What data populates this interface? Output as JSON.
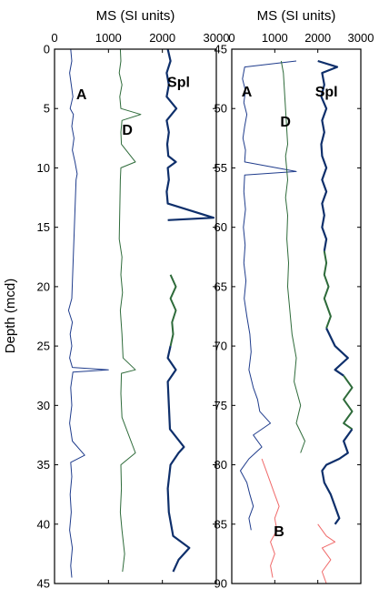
{
  "chart_data": {
    "type": "line",
    "ylabel": "Depth (mcd)",
    "panels": [
      {
        "xlabel": "MS (SI units)",
        "xlim": [
          0,
          3000
        ],
        "xticks": [
          0,
          1000,
          2000,
          3000
        ],
        "ylim": [
          0,
          45
        ],
        "yticks": [
          0,
          5,
          10,
          15,
          20,
          25,
          30,
          35,
          40,
          45
        ],
        "series": [
          {
            "name": "A",
            "color": "#1f3c8c",
            "label_at": [
              500,
              4.2
            ],
            "points": [
              [
                300,
                0
              ],
              [
                320,
                1
              ],
              [
                280,
                2
              ],
              [
                310,
                3
              ],
              [
                340,
                4
              ],
              [
                290,
                5
              ],
              [
                350,
                5.5
              ],
              [
                320,
                6.5
              ],
              [
                360,
                7.5
              ],
              [
                330,
                8.5
              ],
              [
                380,
                9.5
              ],
              [
                420,
                10.5
              ],
              [
                400,
                11
              ],
              [
                320,
                21
              ],
              [
                260,
                22
              ],
              [
                330,
                23
              ],
              [
                290,
                24
              ],
              [
                320,
                25
              ],
              [
                280,
                26
              ],
              [
                330,
                26.8
              ],
              [
                1000,
                27
              ],
              [
                340,
                27.2
              ],
              [
                300,
                28.5
              ],
              [
                320,
                30
              ],
              [
                280,
                31.5
              ],
              [
                330,
                33
              ],
              [
                560,
                34.2
              ],
              [
                300,
                34.8
              ],
              [
                320,
                36
              ],
              [
                290,
                37.5
              ],
              [
                310,
                39
              ],
              [
                280,
                40.5
              ],
              [
                330,
                42
              ],
              [
                300,
                43.5
              ],
              [
                320,
                44.5
              ]
            ]
          },
          {
            "name": "D",
            "color": "#2e6b3a",
            "label_at": [
              1350,
              7.2
            ],
            "points": [
              [
                1220,
                0
              ],
              [
                1230,
                1
              ],
              [
                1200,
                2
              ],
              [
                1250,
                3
              ],
              [
                1210,
                4
              ],
              [
                1230,
                5
              ],
              [
                1600,
                5.5
              ],
              [
                1250,
                6
              ],
              [
                1230,
                7
              ],
              [
                1240,
                8
              ],
              [
                1500,
                9.5
              ],
              [
                1230,
                10
              ],
              [
                1220,
                11
              ],
              [
                1200,
                16
              ],
              [
                1250,
                17.5
              ],
              [
                1230,
                19
              ],
              [
                1260,
                20.5
              ],
              [
                1220,
                22
              ],
              [
                1250,
                24
              ],
              [
                1270,
                26
              ],
              [
                1500,
                27
              ],
              [
                1240,
                27.3
              ],
              [
                1230,
                29
              ],
              [
                1250,
                31
              ],
              [
                1500,
                34
              ],
              [
                1230,
                35
              ],
              [
                1240,
                37
              ],
              [
                1220,
                39
              ],
              [
                1250,
                40.5
              ],
              [
                1300,
                42.5
              ],
              [
                1260,
                44
              ]
            ]
          },
          {
            "name": "Spl",
            "color": "#0e2f6b",
            "label_at": [
              2300,
              3.2
            ],
            "points": [
              [
                2100,
                0
              ],
              [
                2150,
                1
              ],
              [
                2080,
                2
              ],
              [
                2120,
                3
              ],
              [
                2080,
                4
              ],
              [
                2260,
                5
              ],
              [
                2080,
                6
              ],
              [
                2120,
                7
              ],
              [
                2090,
                8
              ],
              [
                2110,
                9
              ],
              [
                2250,
                9.5
              ],
              [
                2100,
                10
              ],
              [
                2120,
                11
              ],
              [
                2080,
                12
              ],
              [
                2100,
                13
              ],
              [
                2950,
                14.2
              ],
              [
                2100,
                14.4
              ]
            ]
          },
          {
            "name": "",
            "color": "#2e6b3a",
            "points": [
              [
                2150,
                19
              ],
              [
                2250,
                20
              ],
              [
                2150,
                21
              ],
              [
                2250,
                22
              ],
              [
                2180,
                23
              ],
              [
                2200,
                24
              ],
              [
                2150,
                25
              ]
            ]
          },
          {
            "name": "",
            "color": "#0e2f6b",
            "points": [
              [
                2150,
                25
              ],
              [
                2100,
                26
              ],
              [
                2250,
                27
              ],
              [
                2100,
                28
              ],
              [
                2120,
                30
              ],
              [
                2140,
                32
              ],
              [
                2400,
                33.5
              ],
              [
                2300,
                34
              ],
              [
                2150,
                35
              ],
              [
                2100,
                37
              ],
              [
                2120,
                39
              ],
              [
                2200,
                41
              ],
              [
                2500,
                42
              ],
              [
                2300,
                43
              ],
              [
                2200,
                44
              ]
            ]
          }
        ]
      },
      {
        "xlabel": "MS (SI units)",
        "xlim": [
          0,
          3000
        ],
        "xticks": [
          0,
          1000,
          2000,
          3000
        ],
        "ylim": [
          45,
          90
        ],
        "yticks": [
          45,
          50,
          55,
          60,
          65,
          70,
          75,
          80,
          85,
          90
        ],
        "series": [
          {
            "name": "A",
            "color": "#1f3c8c",
            "label_at": [
              350,
              49
            ],
            "points": [
              [
                1500,
                46
              ],
              [
                300,
                46.5
              ],
              [
                250,
                47.5
              ],
              [
                320,
                48.5
              ],
              [
                280,
                49.5
              ],
              [
                350,
                50.5
              ],
              [
                300,
                51.5
              ],
              [
                260,
                52.5
              ],
              [
                320,
                53.5
              ],
              [
                300,
                54.5
              ],
              [
                1500,
                55.3
              ],
              [
                300,
                55.6
              ],
              [
                280,
                57
              ],
              [
                320,
                58.5
              ],
              [
                270,
                60
              ],
              [
                310,
                61.5
              ],
              [
                280,
                63
              ],
              [
                330,
                64.5
              ],
              [
                290,
                66
              ],
              [
                350,
                67.5
              ],
              [
                420,
                69
              ],
              [
                450,
                70.5
              ],
              [
                400,
                72
              ],
              [
                500,
                73.5
              ],
              [
                600,
                74.5
              ],
              [
                650,
                75.5
              ],
              [
                900,
                76.5
              ],
              [
                500,
                77.5
              ],
              [
                700,
                78.5
              ],
              [
                400,
                79.5
              ],
              [
                200,
                80.5
              ],
              [
                350,
                81.5
              ],
              [
                420,
                82.5
              ],
              [
                500,
                83.5
              ],
              [
                400,
                84.5
              ],
              [
                450,
                85.5
              ]
            ]
          },
          {
            "name": "D",
            "color": "#2e6b3a",
            "label_at": [
              1250,
              51.5
            ],
            "points": [
              [
                1150,
                46
              ],
              [
                1200,
                47
              ],
              [
                1300,
                53
              ],
              [
                1250,
                54
              ],
              [
                1300,
                56
              ],
              [
                1250,
                57.5
              ],
              [
                1300,
                59
              ],
              [
                1280,
                61
              ],
              [
                1320,
                63
              ],
              [
                1300,
                65
              ],
              [
                1350,
                67
              ],
              [
                1400,
                69
              ],
              [
                1500,
                71
              ],
              [
                1450,
                73
              ],
              [
                1600,
                75
              ],
              [
                1500,
                76.5
              ],
              [
                1700,
                78
              ],
              [
                1600,
                79
              ]
            ]
          },
          {
            "name": "Spl",
            "color": "#0e2f6b",
            "label_at": [
              2200,
              49
            ],
            "points": [
              [
                2000,
                46
              ],
              [
                2450,
                46.5
              ],
              [
                2100,
                47
              ],
              [
                2150,
                48
              ],
              [
                2080,
                49
              ],
              [
                2200,
                50
              ],
              [
                2100,
                51
              ],
              [
                2150,
                52
              ],
              [
                2080,
                53
              ],
              [
                2100,
                54
              ],
              [
                2200,
                55
              ],
              [
                2100,
                56
              ],
              [
                2200,
                57
              ],
              [
                2100,
                58
              ],
              [
                2150,
                59
              ],
              [
                2100,
                60
              ],
              [
                2200,
                61
              ],
              [
                2150,
                62
              ]
            ]
          },
          {
            "name": "",
            "color": "#2e6b3a",
            "points": [
              [
                2150,
                62
              ],
              [
                2200,
                63
              ],
              [
                2150,
                64
              ],
              [
                2250,
                65
              ],
              [
                2150,
                66
              ],
              [
                2300,
                67.5
              ],
              [
                2200,
                68.5
              ]
            ]
          },
          {
            "name": "",
            "color": "#0e2f6b",
            "points": [
              [
                2200,
                68.5
              ],
              [
                2400,
                70
              ],
              [
                2700,
                71
              ],
              [
                2400,
                72
              ],
              [
                2600,
                72.5
              ]
            ]
          },
          {
            "name": "",
            "color": "#2e6b3a",
            "points": [
              [
                2600,
                72.5
              ],
              [
                2800,
                73.5
              ],
              [
                2600,
                74.5
              ],
              [
                2800,
                75.5
              ],
              [
                2600,
                76.5
              ],
              [
                2800,
                77
              ]
            ]
          },
          {
            "name": "",
            "color": "#0e2f6b",
            "points": [
              [
                2800,
                77
              ],
              [
                2600,
                78
              ],
              [
                2700,
                79
              ],
              [
                2500,
                79.5
              ],
              [
                2200,
                80
              ],
              [
                2100,
                80.5
              ],
              [
                2150,
                81.5
              ],
              [
                2300,
                82.5
              ],
              [
                2400,
                83.5
              ],
              [
                2500,
                84.5
              ],
              [
                2400,
                85
              ]
            ]
          },
          {
            "name": "B",
            "color": "#f06a6a",
            "label_at": [
              1100,
              86
            ],
            "points": [
              [
                700,
                79.5
              ],
              [
                800,
                80.5
              ],
              [
                900,
                81.5
              ],
              [
                1000,
                82.5
              ],
              [
                1100,
                83.5
              ],
              [
                1000,
                84.5
              ],
              [
                1050,
                85.5
              ],
              [
                900,
                86.5
              ],
              [
                1000,
                87.5
              ],
              [
                900,
                88.5
              ],
              [
                950,
                89.5
              ]
            ]
          },
          {
            "name": "",
            "color": "#f06a6a",
            "points": [
              [
                2000,
                85
              ],
              [
                2200,
                86
              ],
              [
                2400,
                86.5
              ],
              [
                2100,
                87
              ],
              [
                2300,
                88
              ],
              [
                2100,
                89
              ],
              [
                2200,
                90
              ]
            ]
          }
        ]
      }
    ]
  }
}
